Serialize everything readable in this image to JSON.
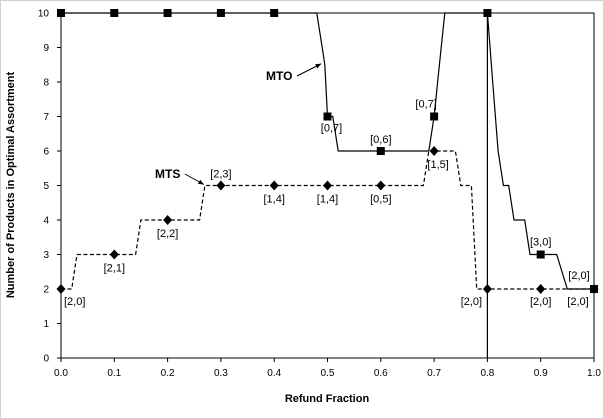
{
  "chart_data": {
    "type": "line",
    "xlabel": "Refund Fraction",
    "ylabel": "Number of Products in Optimal Assortment",
    "xlim": [
      0,
      1
    ],
    "ylim": [
      0,
      10
    ],
    "x_ticks": [
      "0.0",
      "0.1",
      "0.2",
      "0.3",
      "0.4",
      "0.5",
      "0.6",
      "0.7",
      "0.8",
      "0.9",
      "1.0"
    ],
    "y_ticks": [
      "0",
      "1",
      "2",
      "3",
      "4",
      "5",
      "6",
      "7",
      "8",
      "9",
      "10"
    ],
    "grid": false,
    "series": [
      {
        "name": "MTS",
        "style": "dashed",
        "marker": "diamond",
        "color": "#000000",
        "line": [
          [
            0.0,
            2
          ],
          [
            0.02,
            2
          ],
          [
            0.03,
            3
          ],
          [
            0.14,
            3
          ],
          [
            0.15,
            4
          ],
          [
            0.26,
            4
          ],
          [
            0.27,
            5
          ],
          [
            0.68,
            5
          ],
          [
            0.69,
            6
          ],
          [
            0.74,
            6
          ],
          [
            0.75,
            5
          ],
          [
            0.77,
            5
          ],
          [
            0.78,
            2
          ],
          [
            1.0,
            2
          ]
        ],
        "markers": [
          [
            0.0,
            2
          ],
          [
            0.1,
            3
          ],
          [
            0.2,
            4
          ],
          [
            0.3,
            5
          ],
          [
            0.4,
            5
          ],
          [
            0.5,
            5
          ],
          [
            0.6,
            5
          ],
          [
            0.7,
            6
          ],
          [
            0.8,
            2
          ],
          [
            0.9,
            2
          ],
          [
            1.0,
            2
          ]
        ]
      },
      {
        "name": "MTO",
        "style": "solid",
        "marker": "square",
        "color": "#000000",
        "segments": [
          [
            [
              0.0,
              10
            ],
            [
              0.48,
              10
            ]
          ],
          [
            [
              0.48,
              10
            ],
            [
              0.485,
              9.5
            ],
            [
              0.49,
              9
            ],
            [
              0.495,
              8.5
            ],
            [
              0.5,
              7
            ],
            [
              0.51,
              7
            ],
            [
              0.52,
              6
            ],
            [
              0.69,
              6
            ],
            [
              0.7,
              7
            ],
            [
              0.71,
              8.5
            ],
            [
              0.72,
              10
            ],
            [
              0.8,
              10
            ]
          ],
          [
            [
              0.8,
              0
            ],
            [
              0.8,
              10
            ],
            [
              0.81,
              8
            ],
            [
              0.82,
              6
            ],
            [
              0.83,
              5
            ],
            [
              0.84,
              5
            ],
            [
              0.85,
              4
            ],
            [
              0.87,
              4
            ],
            [
              0.88,
              3
            ],
            [
              0.93,
              3
            ],
            [
              0.95,
              2
            ],
            [
              1.0,
              2
            ]
          ]
        ],
        "markers": [
          [
            0.0,
            10
          ],
          [
            0.1,
            10
          ],
          [
            0.2,
            10
          ],
          [
            0.3,
            10
          ],
          [
            0.4,
            10
          ],
          [
            0.5,
            7
          ],
          [
            0.6,
            6
          ],
          [
            0.7,
            7
          ],
          [
            0.8,
            10
          ],
          [
            0.9,
            3
          ],
          [
            1.0,
            2
          ]
        ]
      }
    ],
    "annotations": [
      {
        "text": "[2,0]",
        "x": 0.0,
        "y": 2
      },
      {
        "text": "[2,1]",
        "x": 0.1,
        "y": 3
      },
      {
        "text": "[2,2]",
        "x": 0.2,
        "y": 4
      },
      {
        "text": "[2,3]",
        "x": 0.3,
        "y": 5
      },
      {
        "text": "[1,4]",
        "x": 0.4,
        "y": 5
      },
      {
        "text": "[1,4]",
        "x": 0.5,
        "y": 5
      },
      {
        "text": "[0,5]",
        "x": 0.6,
        "y": 5
      },
      {
        "text": "[1,5]",
        "x": 0.7,
        "y": 6
      },
      {
        "text": "[0,7]",
        "x": 0.5,
        "y": 7
      },
      {
        "text": "[0,6]",
        "x": 0.6,
        "y": 6
      },
      {
        "text": "[0,7]",
        "x": 0.7,
        "y": 7
      },
      {
        "text": "[2,0]",
        "x": 0.8,
        "y": 2
      },
      {
        "text": "[2,0]",
        "x": 0.9,
        "y": 2
      },
      {
        "text": "[3,0]",
        "x": 0.9,
        "y": 3
      },
      {
        "text": "[2,0]",
        "x": 1.0,
        "y": 2
      },
      {
        "text": "[2,0]",
        "x": 1.0,
        "y": 2
      }
    ],
    "series_labels": [
      {
        "text": "MTO",
        "points_to": [
          0.49,
          8.5
        ]
      },
      {
        "text": "MTS",
        "points_to": [
          0.27,
          5
        ]
      }
    ]
  }
}
